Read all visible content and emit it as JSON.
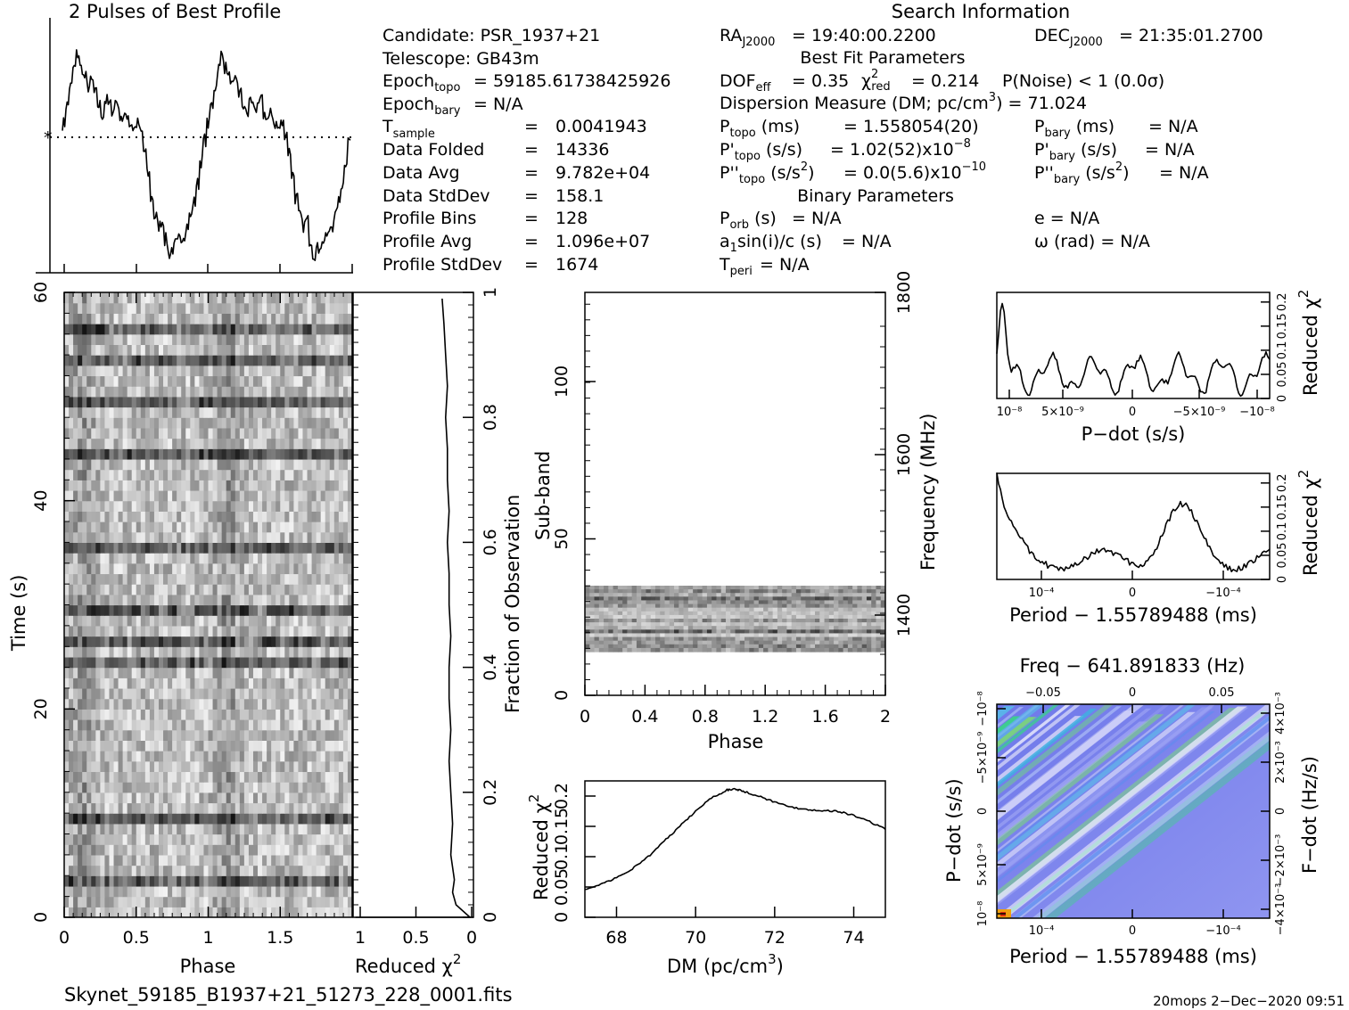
{
  "profile": {
    "title": "2 Pulses of Best Profile",
    "values": [
      0.62,
      0.7,
      0.78,
      0.86,
      0.92,
      0.86,
      0.82,
      0.78,
      0.8,
      0.75,
      0.7,
      0.66,
      0.72,
      0.7,
      0.68,
      0.72,
      0.66,
      0.64,
      0.66,
      0.62,
      0.6,
      0.62,
      0.58,
      0.5,
      0.4,
      0.3,
      0.22,
      0.18,
      0.2,
      0.12,
      0.06,
      0.08,
      0.1,
      0.12,
      0.14,
      0.18,
      0.22,
      0.28,
      0.36,
      0.46,
      0.55,
      0.62,
      0.7,
      0.78,
      0.86,
      0.92,
      0.86,
      0.82,
      0.78,
      0.8,
      0.75,
      0.7,
      0.66,
      0.72,
      0.7,
      0.68,
      0.72,
      0.66,
      0.64,
      0.66,
      0.62,
      0.6,
      0.62,
      0.58,
      0.5,
      0.4,
      0.3,
      0.22,
      0.18,
      0.2,
      0.12,
      0.06,
      0.08,
      0.1,
      0.12,
      0.14,
      0.18,
      0.22,
      0.28,
      0.36,
      0.46,
      0.55
    ]
  },
  "info": {
    "search_heading": "Search Information",
    "best_fit_heading": "Best Fit Parameters",
    "binary_heading": "Binary Parameters",
    "candidate": "Candidate:  PSR_1937+21",
    "telescope": "Telescope:  GB43m",
    "epoch_topo": "= 59185.61738425926",
    "epoch_bary": "= N/A",
    "tsample": "0.0041943",
    "data_folded": "14336",
    "data_avg": "9.782e+04",
    "data_stddev": "158.1",
    "profile_bins": "128",
    "profile_avg": "1.096e+07",
    "profile_stddev": "1674",
    "ra": "= 19:40:00.2200",
    "dec": "= 21:35:01.2700",
    "dof": "= 0.35",
    "chi2red": "= 0.214",
    "pnoise": "P(Noise) < 1   (0.0σ)",
    "dm_line": "Dispersion Measure (DM; pc/cm",
    "dm_value": ") = 71.024",
    "ptopo": "=  1.558054(20)",
    "pdtopo": "=  1.02(52)x10",
    "pdtopo_exp": "−8",
    "pddtopo": "= 0.0(5.6)x10",
    "pddtopo_exp": "−10",
    "pbary": "= N/A",
    "pdbary": "= N/A",
    "pddbary": "= N/A",
    "porb": "= N/A",
    "a1sini": "= N/A",
    "tperi": "= N/A",
    "ecc": "e = N/A",
    "omega": "ω (rad) = N/A"
  },
  "labels": {
    "time": "Time (s)",
    "phase": "Phase",
    "reduced_chi2": "Reduced χ",
    "fraction": "Fraction of Observation",
    "subband": "Sub-band",
    "frequency": "Frequency (MHz)",
    "dm": "DM (pc/cm",
    "pdot": "P−dot (s/s)",
    "period": "Period − 1.55789488 (ms)",
    "freq": "Freq − 641.891833 (Hz)",
    "fdot": "F−dot (Hz/s)",
    "pdot_axis": "P−dot (s/s)",
    "filename": "Skynet_59185_B1937+21_51273_228_0001.fits",
    "footer": "20mops   2−Dec−2020 09:51"
  },
  "chart_data": [
    {
      "type": "line",
      "name": "reduced-chi2-vs-time",
      "x": [
        0.0,
        0.02,
        0.04,
        0.06,
        0.08,
        0.1,
        0.15,
        0.2,
        0.25,
        0.3,
        0.35,
        0.4,
        0.45,
        0.5,
        0.55,
        0.6,
        0.65,
        0.7,
        0.75,
        0.8,
        0.85,
        0.9,
        0.95,
        0.99
      ],
      "values": [
        0.02,
        0.1,
        0.12,
        0.11,
        0.12,
        0.13,
        0.12,
        0.13,
        0.14,
        0.13,
        0.14,
        0.14,
        0.13,
        0.14,
        0.14,
        0.15,
        0.14,
        0.15,
        0.15,
        0.16,
        0.15,
        0.16,
        0.17,
        0.18
      ],
      "xlabel": "Reduced χ2",
      "ylabel": "Fraction of Observation",
      "ylim": [
        0,
        1
      ]
    },
    {
      "type": "line",
      "name": "dm-curve",
      "x": [
        67.2,
        67.6,
        68.0,
        68.4,
        68.8,
        69.2,
        69.6,
        70.0,
        70.4,
        70.8,
        71.0,
        71.2,
        71.6,
        72.0,
        72.4,
        72.8,
        73.2,
        73.6,
        74.0,
        74.4,
        74.8
      ],
      "values": [
        0.045,
        0.055,
        0.065,
        0.08,
        0.1,
        0.125,
        0.15,
        0.175,
        0.197,
        0.21,
        0.212,
        0.208,
        0.2,
        0.19,
        0.182,
        0.178,
        0.176,
        0.175,
        0.168,
        0.158,
        0.145
      ],
      "xlabel": "DM (pc/cm3)",
      "ylabel": "Reduced χ2",
      "xticks": [
        "68",
        "70",
        "72",
        "74"
      ],
      "yticks": [
        "0",
        "0.05",
        "0.1",
        "0.15",
        "0.2"
      ]
    },
    {
      "type": "line",
      "name": "pdot-curve",
      "xticks": [
        "10^-8",
        "5x10^-9",
        "0",
        "-5x10^-9",
        "-10^-8"
      ],
      "yticks": [
        "0",
        "0.05",
        "0.1",
        "0.15",
        "0.2"
      ],
      "xlabel": "P−dot (s/s)",
      "ylabel": "Reduced χ2"
    },
    {
      "type": "line",
      "name": "period-curve",
      "xticks": [
        "10^-4",
        "0",
        "-10^-4"
      ],
      "yticks": [
        "0",
        "0.05",
        "0.1",
        "0.15",
        "0.2"
      ],
      "xlabel": "Period − 1.55789488 (ms)",
      "ylabel": "Reduced χ2"
    },
    {
      "type": "heatmap",
      "name": "period-pdot-plane",
      "xlabel": "Period − 1.55789488 (ms)",
      "top_xlabel": "Freq − 641.891833 (Hz)",
      "ylabel": "P−dot (s/s)",
      "right_ylabel": "F−dot (Hz/s)"
    }
  ],
  "ticks": {
    "time": [
      "0",
      "20",
      "40",
      "60"
    ],
    "phase": [
      "0",
      "0.5",
      "1",
      "1.5"
    ],
    "redchi_x": [
      "1",
      "0.5",
      "0"
    ],
    "fraction": [
      "0",
      "0.2",
      "0.4",
      "0.6",
      "0.8",
      "1"
    ],
    "subband": [
      "0",
      "50",
      "100"
    ],
    "subphase": [
      "0",
      "0.4",
      "0.8",
      "1.2",
      "1.6",
      "2"
    ],
    "freq_axis": [
      "1400",
      "1600",
      "1800"
    ],
    "top_freq": [
      "−0.05",
      "0",
      "0.05"
    ]
  }
}
